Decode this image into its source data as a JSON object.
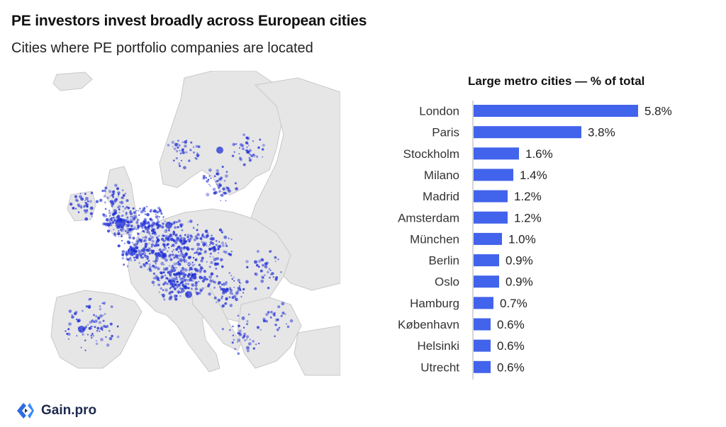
{
  "header": {
    "title": "PE investors invest broadly across European cities",
    "subtitle": "Cities where PE portfolio companies are located"
  },
  "chart_data": [
    {
      "type": "map",
      "title": "",
      "description_colors": {
        "land": "#e6e6e6",
        "border": "#c4c4c4",
        "dots": "#1f2fd6"
      }
    },
    {
      "type": "bar",
      "orientation": "horizontal",
      "title": "Large metro cities — % of total",
      "categories": [
        "London",
        "Paris",
        "Stockholm",
        "Milano",
        "Madrid",
        "Amsterdam",
        "München",
        "Berlin",
        "Oslo",
        "Hamburg",
        "København",
        "Helsinki",
        "Utrecht"
      ],
      "values": [
        5.8,
        3.8,
        1.6,
        1.4,
        1.2,
        1.2,
        1.0,
        0.9,
        0.9,
        0.7,
        0.6,
        0.6,
        0.6
      ],
      "value_labels": [
        "5.8%",
        "3.8%",
        "1.6%",
        "1.4%",
        "1.2%",
        "1.2%",
        "1.0%",
        "0.9%",
        "0.9%",
        "0.7%",
        "0.6%",
        "0.6%",
        "0.6%"
      ],
      "xlim": [
        0,
        6.0
      ],
      "grid": false,
      "bar_color": "#4263eb"
    }
  ],
  "footer": {
    "brand": "Gain.pro",
    "brand_color": "#1f2a4d",
    "icon": "gain-pro-logo-icon"
  }
}
